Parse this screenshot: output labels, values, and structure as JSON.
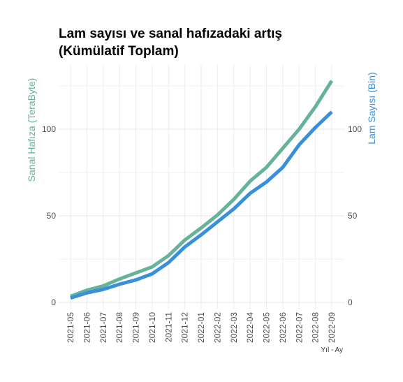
{
  "chart_data": {
    "type": "line",
    "title_lines": [
      "Lam sayısı ve sanal hafızadaki artış",
      "(Kümülatif Toplam)"
    ],
    "xlabel": "Yıl - Ay",
    "ylabel_left": "Sanal Hafıza (TeraByte)",
    "ylabel_right": "Lam Sayısı (Bin)",
    "categories": [
      "2021-05",
      "2021-06",
      "2021-07",
      "2021-08",
      "2021-09",
      "2021-10",
      "2021-11",
      "2021-12",
      "2022-01",
      "2022-02",
      "2022-03",
      "2022-04",
      "2022-05",
      "2022-06",
      "2022-07",
      "2022-08",
      "2022-09"
    ],
    "ylim": [
      0,
      130
    ],
    "yticks": [
      0,
      50,
      100
    ],
    "grid": true,
    "series": [
      {
        "axis": "left",
        "color": "#66b39a",
        "values": [
          3.5,
          7,
          9.5,
          13.5,
          17,
          20.5,
          27,
          36,
          43,
          50.5,
          59.5,
          70,
          78,
          89,
          100,
          113,
          128
        ]
      },
      {
        "axis": "right",
        "color": "#3a8fdd",
        "values": [
          2.5,
          5.5,
          7.5,
          10.5,
          13,
          16.5,
          23,
          32,
          39,
          46.5,
          54,
          63,
          69.5,
          78,
          91,
          101,
          110
        ]
      }
    ]
  }
}
